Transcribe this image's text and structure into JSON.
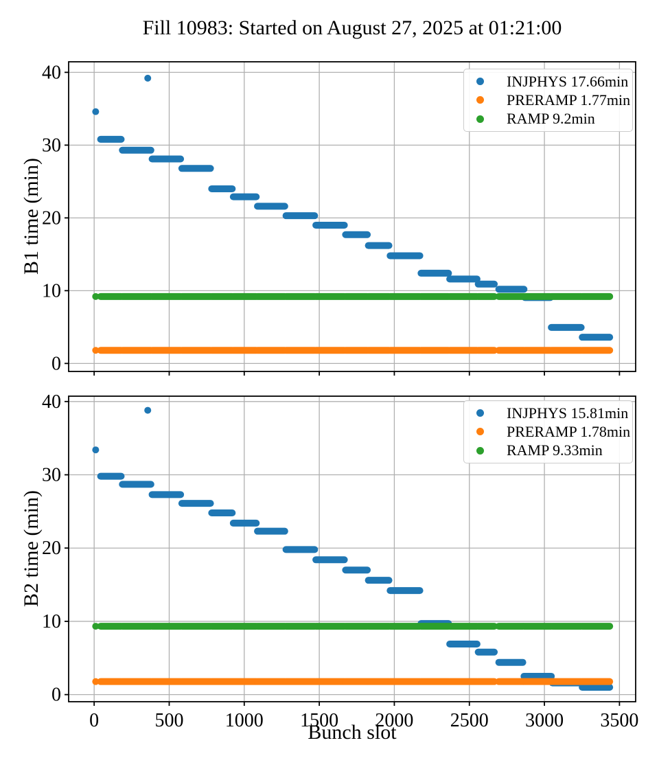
{
  "title": "Fill 10983: Started on August 27, 2025 at 01:21:00",
  "chart_data": [
    {
      "type": "scatter",
      "subplot": "top",
      "ylabel": "B1 time (min)",
      "xlabel": "",
      "grid": true,
      "legend_position": "upper right",
      "xlim": [
        -170,
        3608
      ],
      "ylim": [
        -1.1,
        41.45
      ],
      "xticks": [
        0,
        500,
        1000,
        1500,
        2000,
        2500,
        3000,
        3500
      ],
      "yticks": [
        0,
        10,
        20,
        30,
        40
      ],
      "show_xtick_labels": false,
      "bunch_slot_segments": [
        [
          43,
          180
        ],
        [
          188,
          378
        ],
        [
          386,
          576
        ],
        [
          584,
          775
        ],
        [
          783,
          920
        ],
        [
          927,
          1080
        ],
        [
          1088,
          1270
        ],
        [
          1278,
          1469
        ],
        [
          1477,
          1667
        ],
        [
          1675,
          1820
        ],
        [
          1827,
          1964
        ],
        [
          1972,
          2170
        ],
        [
          2178,
          2361
        ],
        [
          2369,
          2551
        ],
        [
          2559,
          2666
        ],
        [
          2696,
          2864
        ],
        [
          2871,
          3039
        ],
        [
          3046,
          3245
        ],
        [
          3252,
          3435
        ]
      ],
      "series": [
        {
          "name": "INJPHYS 17.66min",
          "color": "#1f77b4",
          "mean_min": 17.66,
          "segment_values": [
            30.8,
            29.3,
            28.1,
            26.8,
            24.0,
            22.9,
            21.6,
            20.3,
            19.0,
            17.7,
            16.2,
            14.8,
            12.4,
            11.6,
            10.9,
            10.2,
            9.05,
            4.95,
            3.6
          ],
          "first_point": [
            10,
            34.6
          ],
          "outlier_point": [
            357,
            39.2
          ]
        },
        {
          "name": "PRERAMP 1.77min",
          "color": "#ff7f0e",
          "mean_min": 1.77,
          "constant_value": 1.8,
          "first_point": [
            10,
            1.8
          ]
        },
        {
          "name": "RAMP 9.2min",
          "color": "#2ca02c",
          "mean_min": 9.2,
          "constant_value": 9.2,
          "first_point": [
            10,
            9.2
          ]
        }
      ]
    },
    {
      "type": "scatter",
      "subplot": "bottom",
      "ylabel": "B2 time (min)",
      "xlabel": "Bunch slot",
      "grid": true,
      "legend_position": "upper right",
      "xlim": [
        -170,
        3608
      ],
      "ylim": [
        -0.97,
        40.73
      ],
      "xticks": [
        0,
        500,
        1000,
        1500,
        2000,
        2500,
        3000,
        3500
      ],
      "yticks": [
        0,
        10,
        20,
        30,
        40
      ],
      "show_xtick_labels": true,
      "bunch_slot_segments": [
        [
          43,
          180
        ],
        [
          188,
          378
        ],
        [
          386,
          576
        ],
        [
          584,
          775
        ],
        [
          783,
          920
        ],
        [
          927,
          1080
        ],
        [
          1088,
          1270
        ],
        [
          1278,
          1469
        ],
        [
          1477,
          1667
        ],
        [
          1675,
          1820
        ],
        [
          1827,
          1964
        ],
        [
          1972,
          2170
        ],
        [
          2178,
          2361
        ],
        [
          2369,
          2551
        ],
        [
          2559,
          2666
        ],
        [
          2696,
          2856
        ],
        [
          2864,
          3046
        ],
        [
          3053,
          3245
        ],
        [
          3252,
          3435
        ]
      ],
      "series": [
        {
          "name": "INJPHYS 15.81min",
          "color": "#1f77b4",
          "mean_min": 15.81,
          "segment_values": [
            29.8,
            28.7,
            27.3,
            26.1,
            24.8,
            23.4,
            22.3,
            19.8,
            18.4,
            17.0,
            15.6,
            14.2,
            9.7,
            6.9,
            5.8,
            4.4,
            2.5,
            1.6,
            1.0
          ],
          "first_point": [
            10,
            33.4
          ],
          "outlier_point": [
            357,
            38.8
          ]
        },
        {
          "name": "PRERAMP 1.78min",
          "color": "#ff7f0e",
          "mean_min": 1.78,
          "constant_value": 1.78,
          "first_point": [
            10,
            1.78
          ]
        },
        {
          "name": "RAMP 9.33min",
          "color": "#2ca02c",
          "mean_min": 9.33,
          "constant_value": 9.33,
          "first_point": [
            10,
            9.33
          ]
        }
      ]
    }
  ],
  "style": {
    "grid_color": "#b0b0b0",
    "spine_color": "#000000",
    "background": "#ffffff"
  }
}
